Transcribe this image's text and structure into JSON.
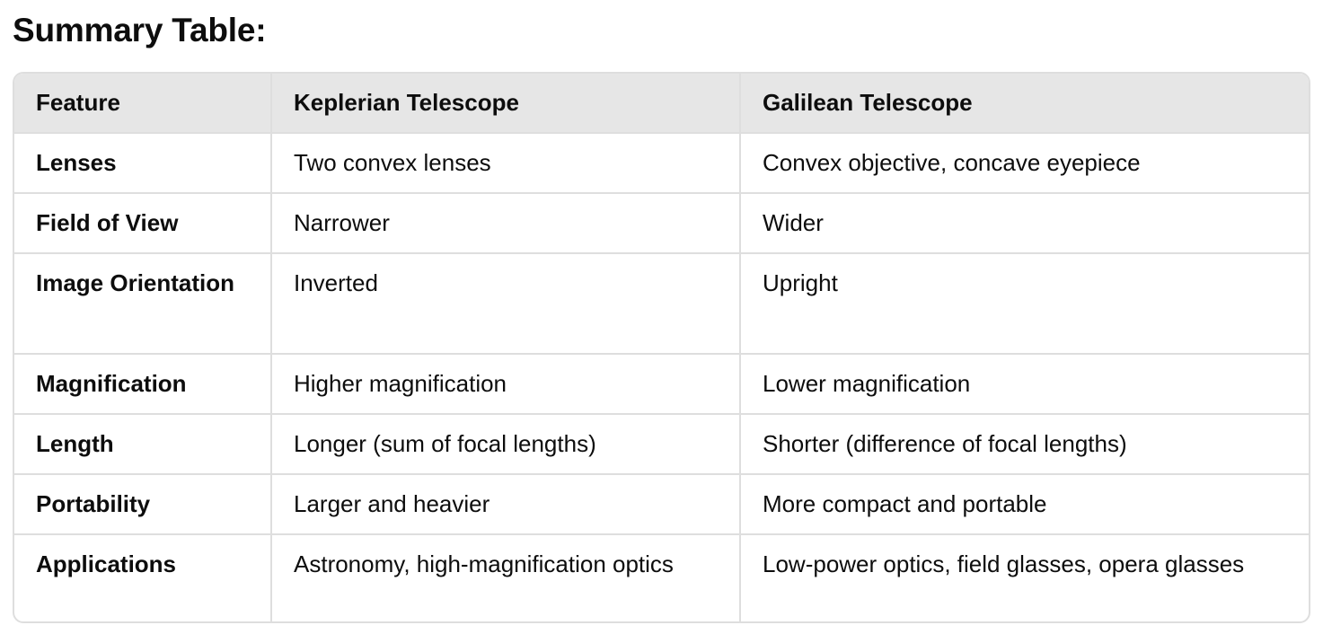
{
  "title": "Summary Table:",
  "table": {
    "headers": [
      "Feature",
      "Keplerian Telescope",
      "Galilean Telescope"
    ],
    "rows": [
      [
        "Lenses",
        "Two convex lenses",
        "Convex objective, concave eyepiece"
      ],
      [
        "Field of View",
        "Narrower",
        "Wider"
      ],
      [
        "Image Orientation",
        "Inverted",
        "Upright"
      ],
      [
        "Magnification",
        "Higher magnification",
        "Lower magnification"
      ],
      [
        "Length",
        "Longer (sum of focal lengths)",
        "Shorter (difference of focal lengths)"
      ],
      [
        "Portability",
        "Larger and heavier",
        "More compact and portable"
      ],
      [
        "Applications",
        "Astronomy, high-magnification optics",
        "Low-power optics, field glasses, opera glasses"
      ]
    ]
  }
}
